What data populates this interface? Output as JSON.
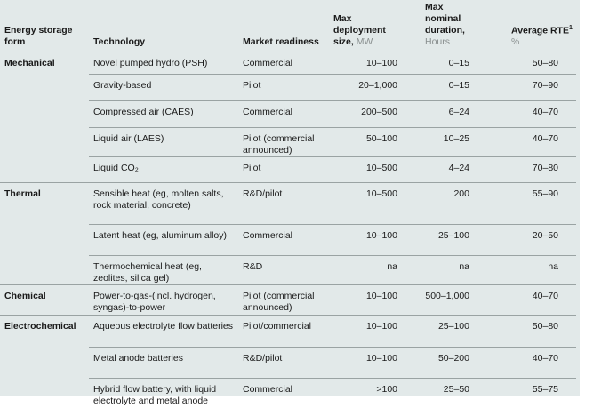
{
  "headers": {
    "form": "Energy storage form",
    "technology": "Technology",
    "readiness": "Market readiness",
    "size": "Max deployment size,",
    "size_unit": "MW",
    "duration": "Max nominal duration,",
    "duration_unit": "Hours",
    "rte": "Average RTE",
    "rte_sup": "1",
    "rte_unit": "%"
  },
  "groups": [
    {
      "form": "Mechanical",
      "rows": [
        {
          "technology": "Novel pumped hydro (PSH)",
          "readiness": "Commercial",
          "size": "10–100",
          "duration": "0–15",
          "rte": "50–80"
        },
        {
          "technology": "Gravity-based",
          "readiness": "Pilot",
          "size": "20–1,000",
          "duration": "0–15",
          "rte": "70–90"
        },
        {
          "technology": "Compressed air (CAES)",
          "readiness": "Commercial",
          "size": "200–500",
          "duration": "6–24",
          "rte": "40–70"
        },
        {
          "technology": "Liquid air (LAES)",
          "readiness": "Pilot (commercial announced)",
          "size": "50–100",
          "duration": "10–25",
          "rte": "40–70"
        },
        {
          "technology": "Liquid CO₂",
          "readiness": "Pilot",
          "size": "10–500",
          "duration": "4–24",
          "rte": "70–80"
        }
      ]
    },
    {
      "form": "Thermal",
      "rows": [
        {
          "technology": "Sensible heat (eg, molten salts, rock material, concrete)",
          "readiness": "R&D/pilot",
          "size": "10–500",
          "duration": "200",
          "rte": "55–90"
        },
        {
          "technology": "Latent heat (eg, aluminum alloy)",
          "readiness": "Commercial",
          "size": "10–100",
          "duration": "25–100",
          "rte": "20–50"
        },
        {
          "technology": "Thermochemical heat (eg, zeolites, silica gel)",
          "readiness": "R&D",
          "size": "na",
          "duration": "na",
          "rte": "na"
        }
      ]
    },
    {
      "form": "Chemical",
      "rows": [
        {
          "technology": "Power-to-gas-(incl. hydrogen, syngas)-to-power",
          "readiness": "Pilot (commercial announced)",
          "size": "10–100",
          "duration": "500–1,000",
          "rte": "40–70"
        }
      ]
    },
    {
      "form": "Electrochemical",
      "rows": [
        {
          "technology": "Aqueous electrolyte flow batteries",
          "readiness": "Pilot/commercial",
          "size": "10–100",
          "duration": "25–100",
          "rte": "50–80"
        },
        {
          "technology": "Metal anode batteries",
          "readiness": "R&D/pilot",
          "size": "10–100",
          "duration": "50–200",
          "rte": "40–70"
        },
        {
          "technology": "Hybrid flow battery, with liquid electrolyte and metal anode",
          "readiness": "Commercial",
          "size": ">100",
          "duration": "25–50",
          "rte": "55–75"
        }
      ]
    }
  ]
}
